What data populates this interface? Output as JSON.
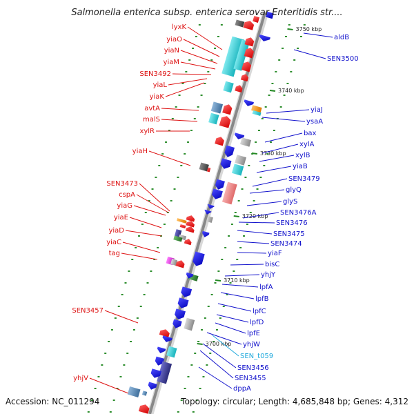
{
  "title": "Salmonella enterica subsp. enterica serovar Enteritidis str....",
  "footer": {
    "accession": "Accession: NC_011294",
    "topology": "Topology: circular; Length: 4,685,848 bp; Genes: 4,312"
  },
  "colors": {
    "left_label": "#dd1111",
    "right_label": "#1111cc",
    "rna_label": "#22aadd",
    "backbone": "#888888",
    "scale_tick": "#228822"
  },
  "scale_ticks": [
    "3750 kbp",
    "3740 kbp",
    "3730 kbp",
    "3720 kbp",
    "3710 kbp",
    "3700 kbp"
  ],
  "left_genes": [
    "lyxK",
    "yiaO",
    "yiaN",
    "yiaM",
    "SEN3492",
    "yiaL",
    "yiaK",
    "avtA",
    "malS",
    "xylR",
    "yiaH",
    "SEN3473",
    "cspA",
    "yiaG",
    "yiaE",
    "yiaD",
    "yiaC",
    "tag",
    "SEN3457",
    "yhjV"
  ],
  "right_genes": [
    "aldB",
    "SEN3500",
    "yiaJ",
    "ysaA",
    "bax",
    "xylA",
    "xylB",
    "yiaB",
    "SEN3479",
    "glyQ",
    "glyS",
    "SEN3476A",
    "SEN3476",
    "SEN3475",
    "SEN3474",
    "yiaF",
    "bisC",
    "yhjY",
    "lpfA",
    "lpfB",
    "lpfC",
    "lpfD",
    "lpfE",
    "yhjW",
    "SEN_t059",
    "SEN3456",
    "SEN3455",
    "dppA"
  ],
  "rna_genes": [
    "SEN_t059"
  ]
}
